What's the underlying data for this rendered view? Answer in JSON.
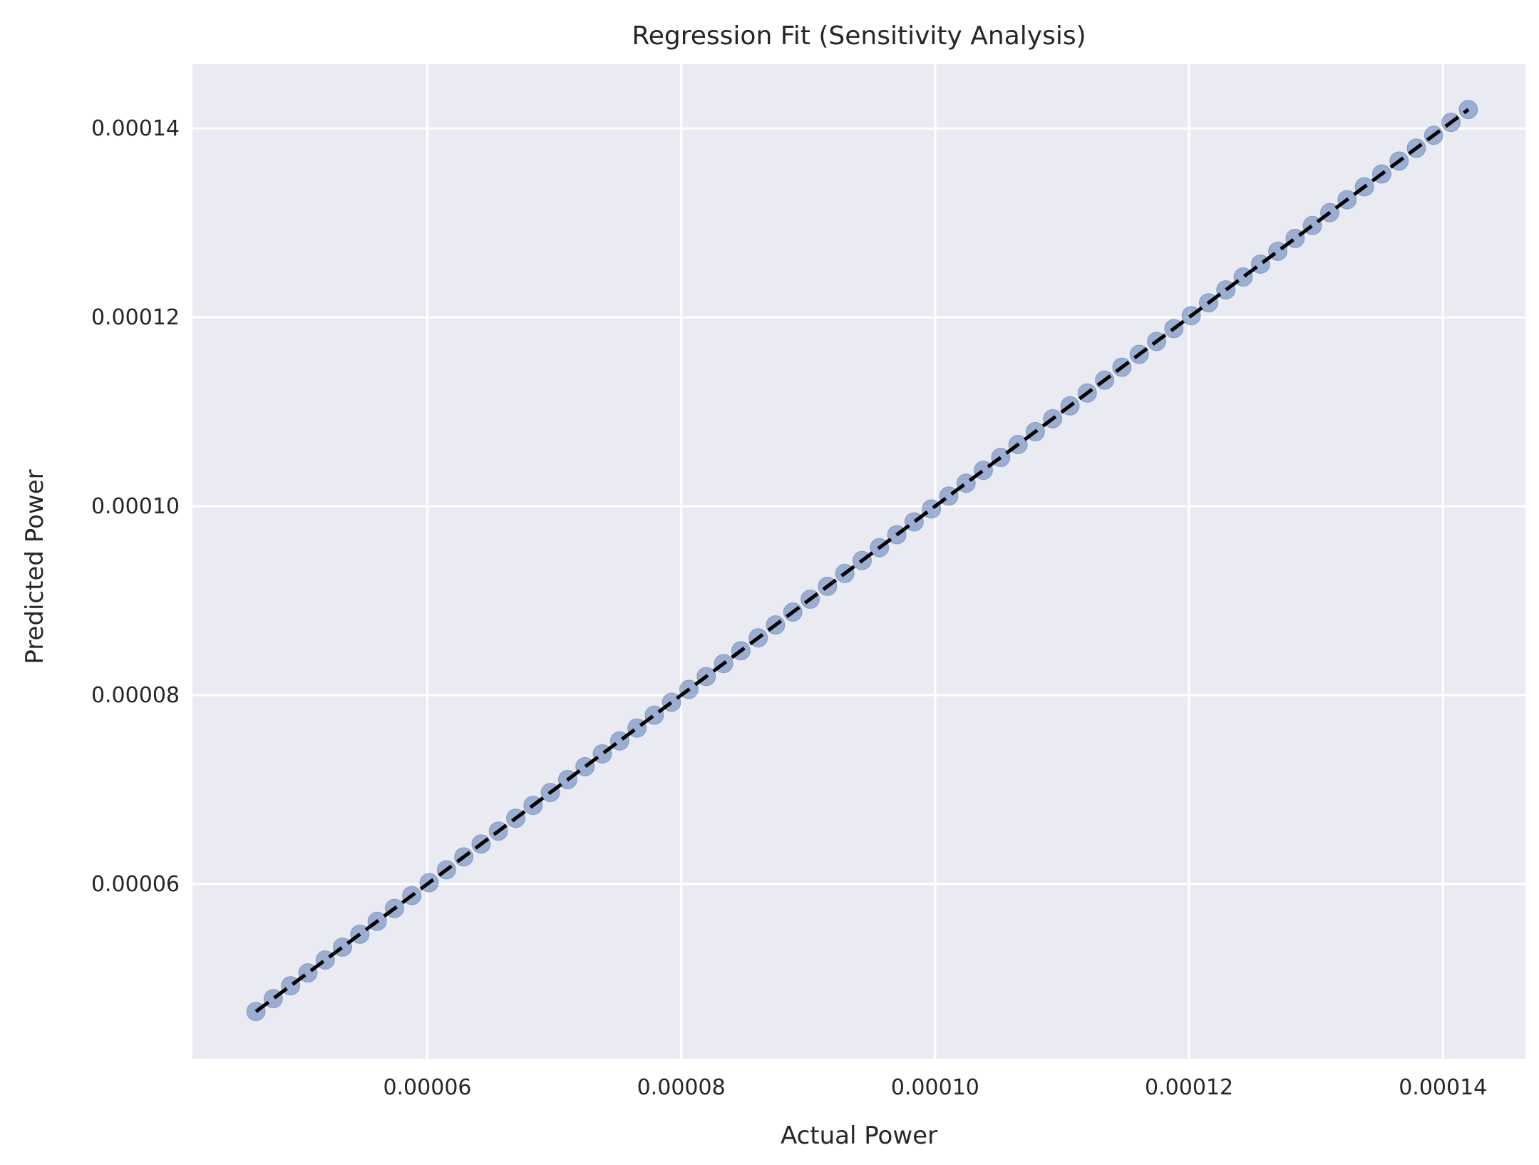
{
  "chart_data": {
    "type": "scatter",
    "title": "Regression Fit (Sensitivity Analysis)",
    "xlabel": "Actual Power",
    "ylabel": "Predicted Power",
    "xlim": [
      4.15e-05,
      0.0001465
    ],
    "ylim": [
      4.15e-05,
      0.0001468
    ],
    "x_ticks": [
      6e-05,
      8e-05,
      0.0001,
      0.00012,
      0.00014
    ],
    "x_tick_labels": [
      "0.00006",
      "0.00008",
      "0.00010",
      "0.00012",
      "0.00014"
    ],
    "y_ticks": [
      6e-05,
      8e-05,
      0.0001,
      0.00012,
      0.00014
    ],
    "y_tick_labels": [
      "0.00006",
      "0.00008",
      "0.00010",
      "0.00012",
      "0.00014"
    ],
    "grid": true,
    "points_range": {
      "start": 4.65e-05,
      "end": 0.000142,
      "count": 71
    },
    "reference_line": {
      "x": [
        4.65e-05,
        0.000142
      ],
      "y": [
        4.65e-05,
        0.000142
      ],
      "style": "dashed"
    },
    "colors": {
      "background": "#eaeaf2",
      "grid": "#ffffff",
      "marker": "#4c72b0",
      "line": "#000000",
      "text": "#262626"
    }
  }
}
